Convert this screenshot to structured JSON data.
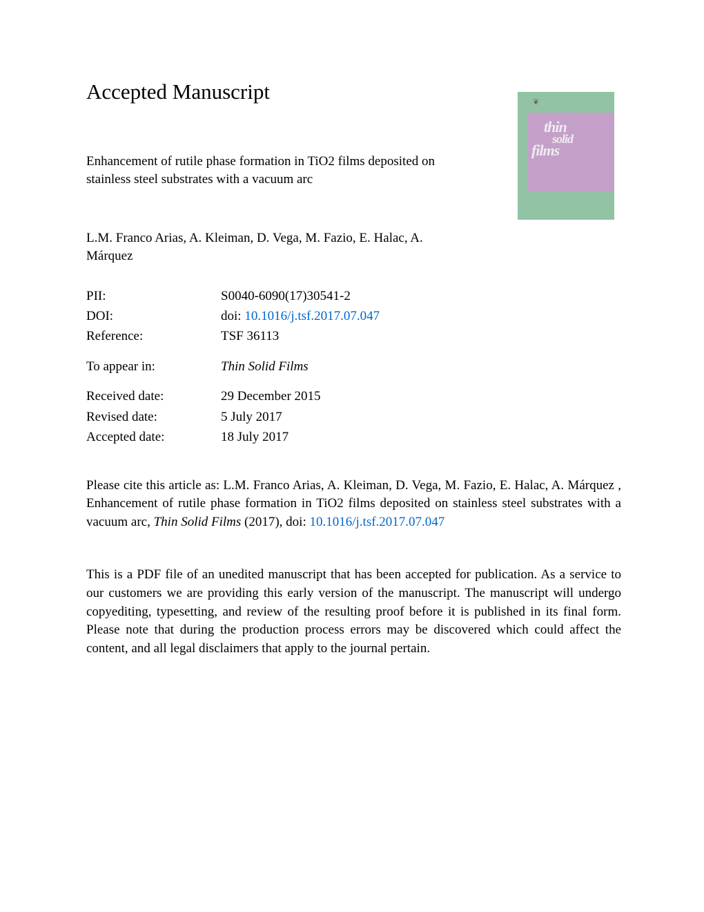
{
  "heading": "Accepted Manuscript",
  "title": "Enhancement of rutile phase formation in TiO2 films deposited on stainless steel substrates with a vacuum arc",
  "authors": "L.M. Franco Arias, A. Kleiman, D. Vega, M. Fazio, E. Halac, A. Márquez",
  "cover": {
    "line1": "thin",
    "line2": "solid",
    "line3": "films"
  },
  "meta": {
    "pii_label": "PII:",
    "pii_value": "S0040-6090(17)30541-2",
    "doi_label": "DOI:",
    "doi_prefix": "doi: ",
    "doi_link": "10.1016/j.tsf.2017.07.047",
    "ref_label": "Reference:",
    "ref_value": "TSF 36113",
    "appear_label": "To appear in:",
    "appear_value": "Thin Solid Films",
    "received_label": "Received date:",
    "received_value": "29 December 2015",
    "revised_label": "Revised date:",
    "revised_value": "5 July 2017",
    "accepted_label": "Accepted date:",
    "accepted_value": "18 July 2017"
  },
  "citation": {
    "prefix": "Please cite this article as: L.M. Franco Arias, A. Kleiman, D. Vega, M. Fazio, E. Halac, A. Márquez , Enhancement of rutile phase formation in TiO2 films deposited on stainless steel substrates with a vacuum arc, ",
    "journal": "Thin Solid Films",
    "year": " (2017), doi: ",
    "link": "10.1016/j.tsf.2017.07.047"
  },
  "disclaimer": "This is a PDF file of an unedited manuscript that has been accepted for publication. As a service to our customers we are providing this early version of the manuscript. The manuscript will undergo copyediting, typesetting, and review of the resulting proof before it is published in its final form. Please note that during the production process errors may be discovered which could affect the content, and all legal disclaimers that apply to the journal pertain."
}
